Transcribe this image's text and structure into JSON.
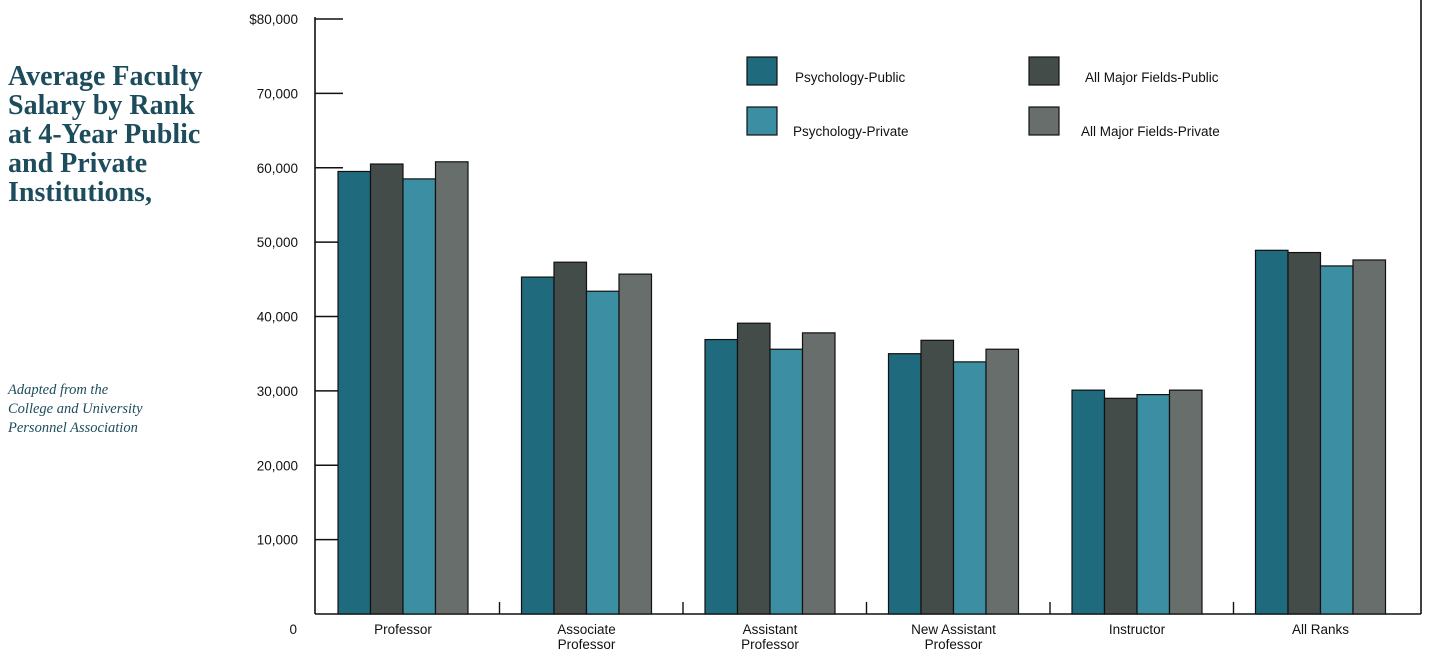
{
  "sidebar": {
    "title": "Average Faculty Salary by Rank at 4-Year Public and Private Institutions,",
    "source_lines": [
      "Adapted from the",
      "College and University",
      "Personnel Association"
    ]
  },
  "chart_data": {
    "type": "bar",
    "categories": [
      [
        "Professor"
      ],
      [
        "Associate",
        "Professor"
      ],
      [
        "Assistant",
        "Professor"
      ],
      [
        "New Assistant",
        "Professor"
      ],
      [
        "Instructor"
      ],
      [
        "All Ranks"
      ]
    ],
    "series": [
      {
        "name": "Psychology-Public",
        "color": "#1f6a7c",
        "values": [
          59500,
          45300,
          36900,
          35000,
          30100,
          48900
        ]
      },
      {
        "name": "All Major Fields-Public",
        "color": "#444c49",
        "values": [
          60500,
          47300,
          39100,
          36800,
          29000,
          48600
        ]
      },
      {
        "name": "Psychology-Private",
        "color": "#3c8ea3",
        "values": [
          58500,
          43400,
          35600,
          33900,
          29500,
          46800
        ]
      },
      {
        "name": "All Major Fields-Private",
        "color": "#686e6b",
        "values": [
          60800,
          45700,
          37800,
          35600,
          30100,
          47600
        ]
      }
    ],
    "ylim": [
      0,
      80000
    ],
    "yticks": [
      0,
      10000,
      20000,
      30000,
      40000,
      50000,
      60000,
      70000,
      80000
    ],
    "ytick_labels": [
      "0",
      "10,000",
      "20,000",
      "30,000",
      "40,000",
      "50,000",
      "60,000",
      "70,000",
      "$80,000"
    ],
    "xlabel": "",
    "ylabel": "",
    "grid": false,
    "legend_position": "top-right"
  }
}
